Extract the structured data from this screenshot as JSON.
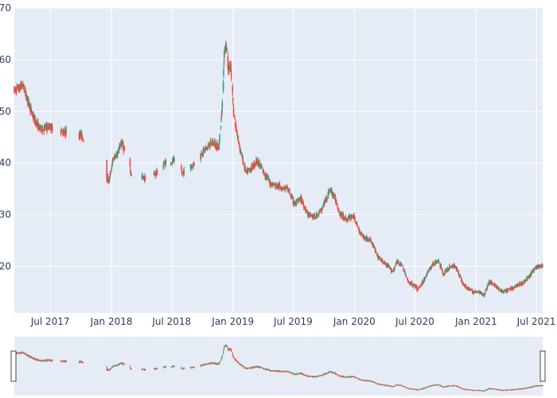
{
  "chart_data": {
    "type": "candlestick",
    "title": "",
    "xlabel": "",
    "ylabel": "",
    "ylim": [
      11,
      70
    ],
    "x_range": [
      "2017-03-15",
      "2021-07-20"
    ],
    "y_ticks": [
      20,
      30,
      40,
      50,
      60,
      70
    ],
    "x_ticks": [
      {
        "date": "2017-07-01",
        "label": "Jul 2017"
      },
      {
        "date": "2018-01-01",
        "label": "Jan 2018"
      },
      {
        "date": "2018-07-01",
        "label": "Jul 2018"
      },
      {
        "date": "2019-01-01",
        "label": "Jan 2019"
      },
      {
        "date": "2019-07-01",
        "label": "Jul 2019"
      },
      {
        "date": "2020-01-01",
        "label": "Jan 2020"
      },
      {
        "date": "2020-07-01",
        "label": "Jul 2020"
      },
      {
        "date": "2021-01-01",
        "label": "Jan 2021"
      },
      {
        "date": "2021-07-01",
        "label": "Jul 2021"
      }
    ],
    "grid": true,
    "legend": false,
    "rangeslider": true,
    "colors": {
      "increasing": "#3d9970",
      "decreasing": "#ff4136",
      "plot_bg": "#e5ecf6",
      "grid": "#ffffff",
      "text": "#2a3f5f"
    },
    "approx_close_path": [
      [
        "2017-03-15",
        54
      ],
      [
        "2017-04-10",
        55
      ],
      [
        "2017-05-10",
        49
      ],
      [
        "2017-06-01",
        46.5
      ],
      [
        "2017-07-01",
        47
      ],
      [
        "2017-08-10",
        46
      ],
      [
        "2017-10-01",
        45.5
      ],
      [
        "2017-12-25",
        36.5
      ],
      [
        "2018-01-05",
        40.5
      ],
      [
        "2018-01-20",
        42
      ],
      [
        "2018-02-01",
        44
      ],
      [
        "2018-03-01",
        38
      ],
      [
        "2018-04-10",
        37
      ],
      [
        "2018-05-15",
        38
      ],
      [
        "2018-06-10",
        40
      ],
      [
        "2018-07-05",
        40.5
      ],
      [
        "2018-08-01",
        38
      ],
      [
        "2018-09-01",
        39.5
      ],
      [
        "2018-10-01",
        42
      ],
      [
        "2018-11-01",
        44
      ],
      [
        "2018-11-20",
        43
      ],
      [
        "2018-12-01",
        52
      ],
      [
        "2018-12-06",
        62
      ],
      [
        "2018-12-12",
        63
      ],
      [
        "2018-12-18",
        58
      ],
      [
        "2018-12-25",
        59
      ],
      [
        "2019-01-03",
        50
      ],
      [
        "2019-01-12",
        46
      ],
      [
        "2019-01-25",
        42
      ],
      [
        "2019-02-10",
        38
      ],
      [
        "2019-02-25",
        39
      ],
      [
        "2019-03-15",
        40.5
      ],
      [
        "2019-04-05",
        38
      ],
      [
        "2019-04-25",
        36
      ],
      [
        "2019-05-20",
        35.5
      ],
      [
        "2019-06-15",
        35
      ],
      [
        "2019-07-05",
        32
      ],
      [
        "2019-07-25",
        33
      ],
      [
        "2019-08-15",
        30
      ],
      [
        "2019-09-05",
        29.5
      ],
      [
        "2019-09-25",
        31
      ],
      [
        "2019-10-20",
        35
      ],
      [
        "2019-11-05",
        33
      ],
      [
        "2019-11-20",
        30
      ],
      [
        "2019-12-10",
        29
      ],
      [
        "2019-12-28",
        30
      ],
      [
        "2020-01-15",
        27
      ],
      [
        "2020-02-01",
        25.5
      ],
      [
        "2020-02-20",
        25
      ],
      [
        "2020-03-10",
        22
      ],
      [
        "2020-03-25",
        21
      ],
      [
        "2020-04-10",
        20
      ],
      [
        "2020-04-25",
        19
      ],
      [
        "2020-05-10",
        21
      ],
      [
        "2020-05-25",
        20
      ],
      [
        "2020-06-10",
        17
      ],
      [
        "2020-06-25",
        16.5
      ],
      [
        "2020-07-10",
        15.5
      ],
      [
        "2020-07-25",
        17
      ],
      [
        "2020-08-10",
        19
      ],
      [
        "2020-08-25",
        20.5
      ],
      [
        "2020-09-10",
        21
      ],
      [
        "2020-09-25",
        18.5
      ],
      [
        "2020-10-15",
        20
      ],
      [
        "2020-11-01",
        20
      ],
      [
        "2020-11-20",
        17
      ],
      [
        "2020-12-10",
        15.5
      ],
      [
        "2020-12-25",
        15
      ],
      [
        "2021-01-10",
        15
      ],
      [
        "2021-01-25",
        14.5
      ],
      [
        "2021-02-10",
        17
      ],
      [
        "2021-02-25",
        16.5
      ],
      [
        "2021-03-10",
        15.5
      ],
      [
        "2021-03-25",
        15
      ],
      [
        "2021-04-10",
        15.5
      ],
      [
        "2021-04-25",
        16
      ],
      [
        "2021-05-10",
        16.5
      ],
      [
        "2021-05-25",
        17
      ],
      [
        "2021-06-10",
        18
      ],
      [
        "2021-06-25",
        19.5
      ],
      [
        "2021-07-05",
        20
      ],
      [
        "2021-07-20",
        20
      ]
    ],
    "approx_gaps": [
      [
        "2017-07-10",
        "2017-08-01"
      ],
      [
        "2017-08-20",
        "2017-09-25"
      ],
      [
        "2017-10-10",
        "2017-12-15"
      ],
      [
        "2018-02-10",
        "2018-02-25"
      ],
      [
        "2018-03-05",
        "2018-04-01"
      ],
      [
        "2018-04-15",
        "2018-05-08"
      ],
      [
        "2018-05-20",
        "2018-06-05"
      ],
      [
        "2018-06-15",
        "2018-06-28"
      ],
      [
        "2018-07-10",
        "2018-07-28"
      ],
      [
        "2018-08-08",
        "2018-08-25"
      ],
      [
        "2018-09-08",
        "2018-09-25"
      ]
    ]
  }
}
